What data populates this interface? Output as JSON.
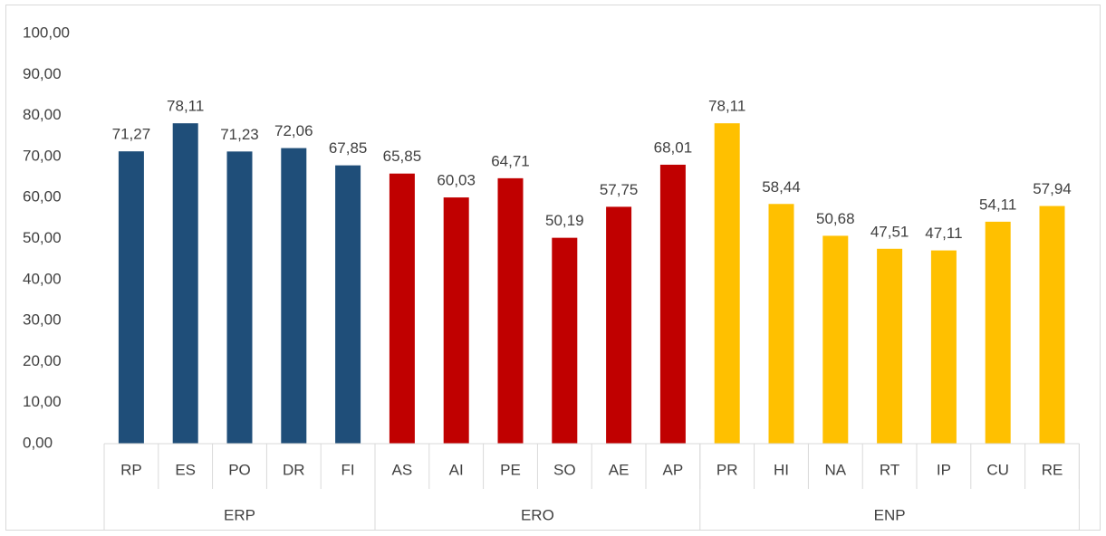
{
  "chart_data": {
    "type": "bar",
    "groups": [
      {
        "name": "ERP",
        "color": "#1f4e79",
        "categories": [
          "RP",
          "ES",
          "PO",
          "DR",
          "FI"
        ],
        "values": [
          71.27,
          78.11,
          71.23,
          72.06,
          67.85
        ],
        "value_labels": [
          "71,27",
          "78,11",
          "71,23",
          "72,06",
          "67,85"
        ]
      },
      {
        "name": "ERO",
        "color": "#c00000",
        "categories": [
          "AS",
          "AI",
          "PE",
          "SO",
          "AE",
          "AP"
        ],
        "values": [
          65.85,
          60.03,
          64.71,
          50.19,
          57.75,
          68.01
        ],
        "value_labels": [
          "65,85",
          "60,03",
          "64,71",
          "50,19",
          "57,75",
          "68,01"
        ]
      },
      {
        "name": "ENP",
        "color": "#ffc000",
        "categories": [
          "PR",
          "HI",
          "NA",
          "RT",
          "IP",
          "CU",
          "RE"
        ],
        "values": [
          78.11,
          58.44,
          50.68,
          47.51,
          47.11,
          54.11,
          57.94
        ],
        "value_labels": [
          "78,11",
          "58,44",
          "50,68",
          "47,51",
          "47,11",
          "54,11",
          "57,94"
        ]
      }
    ],
    "ylim": [
      0,
      100
    ],
    "yticks": [
      {
        "value": 0,
        "label": "0,00"
      },
      {
        "value": 10,
        "label": "10,00"
      },
      {
        "value": 20,
        "label": "20,00"
      },
      {
        "value": 30,
        "label": "30,00"
      },
      {
        "value": 40,
        "label": "40,00"
      },
      {
        "value": 50,
        "label": "50,00"
      },
      {
        "value": 60,
        "label": "60,00"
      },
      {
        "value": 70,
        "label": "70,00"
      },
      {
        "value": 80,
        "label": "80,00"
      },
      {
        "value": 90,
        "label": "90,00"
      },
      {
        "value": 100,
        "label": "100,00"
      }
    ],
    "grid": false
  }
}
